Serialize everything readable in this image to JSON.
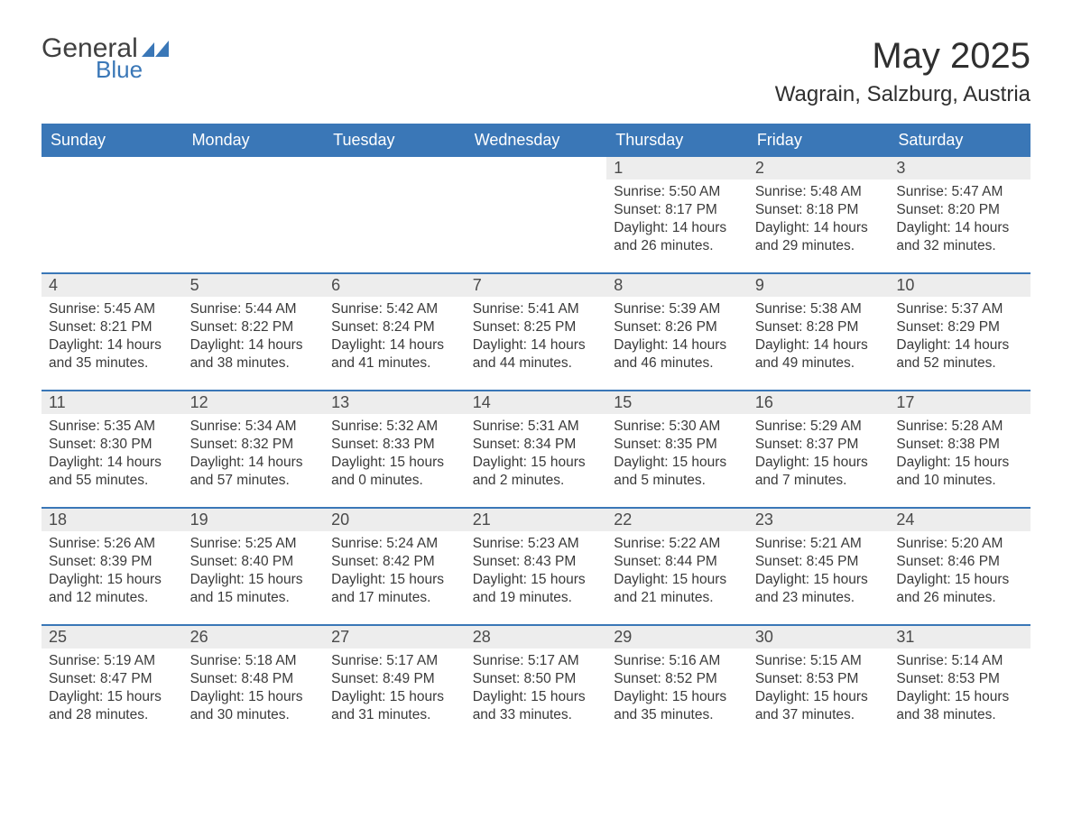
{
  "logo": {
    "general": "General",
    "blue": "Blue",
    "accent_color": "#3a77b7"
  },
  "title": "May 2025",
  "location": "Wagrain, Salzburg, Austria",
  "colors": {
    "header_bg": "#3a77b7",
    "header_text": "#ffffff",
    "daynum_bg": "#ededed",
    "row_border": "#3a77b7",
    "body_text": "#3a3a3a",
    "page_bg": "#ffffff"
  },
  "day_headers": [
    "Sunday",
    "Monday",
    "Tuesday",
    "Wednesday",
    "Thursday",
    "Friday",
    "Saturday"
  ],
  "weeks": [
    [
      null,
      null,
      null,
      null,
      {
        "day": "1",
        "sunrise": "Sunrise: 5:50 AM",
        "sunset": "Sunset: 8:17 PM",
        "daylight1": "Daylight: 14 hours",
        "daylight2": "and 26 minutes."
      },
      {
        "day": "2",
        "sunrise": "Sunrise: 5:48 AM",
        "sunset": "Sunset: 8:18 PM",
        "daylight1": "Daylight: 14 hours",
        "daylight2": "and 29 minutes."
      },
      {
        "day": "3",
        "sunrise": "Sunrise: 5:47 AM",
        "sunset": "Sunset: 8:20 PM",
        "daylight1": "Daylight: 14 hours",
        "daylight2": "and 32 minutes."
      }
    ],
    [
      {
        "day": "4",
        "sunrise": "Sunrise: 5:45 AM",
        "sunset": "Sunset: 8:21 PM",
        "daylight1": "Daylight: 14 hours",
        "daylight2": "and 35 minutes."
      },
      {
        "day": "5",
        "sunrise": "Sunrise: 5:44 AM",
        "sunset": "Sunset: 8:22 PM",
        "daylight1": "Daylight: 14 hours",
        "daylight2": "and 38 minutes."
      },
      {
        "day": "6",
        "sunrise": "Sunrise: 5:42 AM",
        "sunset": "Sunset: 8:24 PM",
        "daylight1": "Daylight: 14 hours",
        "daylight2": "and 41 minutes."
      },
      {
        "day": "7",
        "sunrise": "Sunrise: 5:41 AM",
        "sunset": "Sunset: 8:25 PM",
        "daylight1": "Daylight: 14 hours",
        "daylight2": "and 44 minutes."
      },
      {
        "day": "8",
        "sunrise": "Sunrise: 5:39 AM",
        "sunset": "Sunset: 8:26 PM",
        "daylight1": "Daylight: 14 hours",
        "daylight2": "and 46 minutes."
      },
      {
        "day": "9",
        "sunrise": "Sunrise: 5:38 AM",
        "sunset": "Sunset: 8:28 PM",
        "daylight1": "Daylight: 14 hours",
        "daylight2": "and 49 minutes."
      },
      {
        "day": "10",
        "sunrise": "Sunrise: 5:37 AM",
        "sunset": "Sunset: 8:29 PM",
        "daylight1": "Daylight: 14 hours",
        "daylight2": "and 52 minutes."
      }
    ],
    [
      {
        "day": "11",
        "sunrise": "Sunrise: 5:35 AM",
        "sunset": "Sunset: 8:30 PM",
        "daylight1": "Daylight: 14 hours",
        "daylight2": "and 55 minutes."
      },
      {
        "day": "12",
        "sunrise": "Sunrise: 5:34 AM",
        "sunset": "Sunset: 8:32 PM",
        "daylight1": "Daylight: 14 hours",
        "daylight2": "and 57 minutes."
      },
      {
        "day": "13",
        "sunrise": "Sunrise: 5:32 AM",
        "sunset": "Sunset: 8:33 PM",
        "daylight1": "Daylight: 15 hours",
        "daylight2": "and 0 minutes."
      },
      {
        "day": "14",
        "sunrise": "Sunrise: 5:31 AM",
        "sunset": "Sunset: 8:34 PM",
        "daylight1": "Daylight: 15 hours",
        "daylight2": "and 2 minutes."
      },
      {
        "day": "15",
        "sunrise": "Sunrise: 5:30 AM",
        "sunset": "Sunset: 8:35 PM",
        "daylight1": "Daylight: 15 hours",
        "daylight2": "and 5 minutes."
      },
      {
        "day": "16",
        "sunrise": "Sunrise: 5:29 AM",
        "sunset": "Sunset: 8:37 PM",
        "daylight1": "Daylight: 15 hours",
        "daylight2": "and 7 minutes."
      },
      {
        "day": "17",
        "sunrise": "Sunrise: 5:28 AM",
        "sunset": "Sunset: 8:38 PM",
        "daylight1": "Daylight: 15 hours",
        "daylight2": "and 10 minutes."
      }
    ],
    [
      {
        "day": "18",
        "sunrise": "Sunrise: 5:26 AM",
        "sunset": "Sunset: 8:39 PM",
        "daylight1": "Daylight: 15 hours",
        "daylight2": "and 12 minutes."
      },
      {
        "day": "19",
        "sunrise": "Sunrise: 5:25 AM",
        "sunset": "Sunset: 8:40 PM",
        "daylight1": "Daylight: 15 hours",
        "daylight2": "and 15 minutes."
      },
      {
        "day": "20",
        "sunrise": "Sunrise: 5:24 AM",
        "sunset": "Sunset: 8:42 PM",
        "daylight1": "Daylight: 15 hours",
        "daylight2": "and 17 minutes."
      },
      {
        "day": "21",
        "sunrise": "Sunrise: 5:23 AM",
        "sunset": "Sunset: 8:43 PM",
        "daylight1": "Daylight: 15 hours",
        "daylight2": "and 19 minutes."
      },
      {
        "day": "22",
        "sunrise": "Sunrise: 5:22 AM",
        "sunset": "Sunset: 8:44 PM",
        "daylight1": "Daylight: 15 hours",
        "daylight2": "and 21 minutes."
      },
      {
        "day": "23",
        "sunrise": "Sunrise: 5:21 AM",
        "sunset": "Sunset: 8:45 PM",
        "daylight1": "Daylight: 15 hours",
        "daylight2": "and 23 minutes."
      },
      {
        "day": "24",
        "sunrise": "Sunrise: 5:20 AM",
        "sunset": "Sunset: 8:46 PM",
        "daylight1": "Daylight: 15 hours",
        "daylight2": "and 26 minutes."
      }
    ],
    [
      {
        "day": "25",
        "sunrise": "Sunrise: 5:19 AM",
        "sunset": "Sunset: 8:47 PM",
        "daylight1": "Daylight: 15 hours",
        "daylight2": "and 28 minutes."
      },
      {
        "day": "26",
        "sunrise": "Sunrise: 5:18 AM",
        "sunset": "Sunset: 8:48 PM",
        "daylight1": "Daylight: 15 hours",
        "daylight2": "and 30 minutes."
      },
      {
        "day": "27",
        "sunrise": "Sunrise: 5:17 AM",
        "sunset": "Sunset: 8:49 PM",
        "daylight1": "Daylight: 15 hours",
        "daylight2": "and 31 minutes."
      },
      {
        "day": "28",
        "sunrise": "Sunrise: 5:17 AM",
        "sunset": "Sunset: 8:50 PM",
        "daylight1": "Daylight: 15 hours",
        "daylight2": "and 33 minutes."
      },
      {
        "day": "29",
        "sunrise": "Sunrise: 5:16 AM",
        "sunset": "Sunset: 8:52 PM",
        "daylight1": "Daylight: 15 hours",
        "daylight2": "and 35 minutes."
      },
      {
        "day": "30",
        "sunrise": "Sunrise: 5:15 AM",
        "sunset": "Sunset: 8:53 PM",
        "daylight1": "Daylight: 15 hours",
        "daylight2": "and 37 minutes."
      },
      {
        "day": "31",
        "sunrise": "Sunrise: 5:14 AM",
        "sunset": "Sunset: 8:53 PM",
        "daylight1": "Daylight: 15 hours",
        "daylight2": "and 38 minutes."
      }
    ]
  ]
}
